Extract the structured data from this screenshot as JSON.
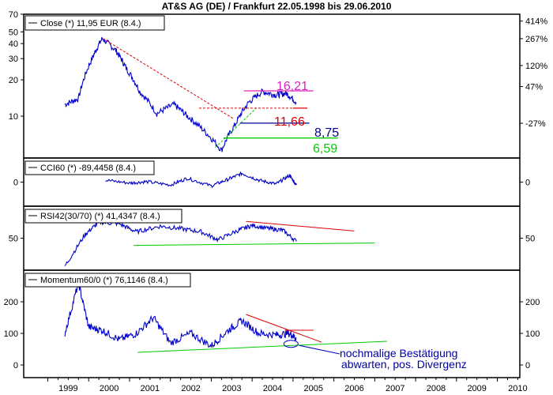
{
  "window": {
    "title": "AT&S AG (DE) / Frankfurt 22.05.1998 bis 29.06.2010"
  },
  "chart_data": [
    {
      "type": "line",
      "panel": "price",
      "scale": "log",
      "legend": "Close (*) 11,95 EUR (8.4.)",
      "series_color": "#0000cc",
      "ylim": [
        4.5,
        70
      ],
      "left_ticks": [
        10,
        20,
        30,
        40,
        50,
        70
      ],
      "right_ticks": [
        "414%",
        "267%",
        "120%",
        "47%",
        "-27%"
      ],
      "right_tick_values": [
        61.4,
        43.9,
        26.3,
        17.6,
        8.73
      ],
      "x": [
        "1999-06",
        "1999-10",
        "2000-02",
        "2000-05",
        "2000-09",
        "2000-12",
        "2001-04",
        "2001-09",
        "2002-02",
        "2002-06",
        "2002-11",
        "2003-04",
        "2003-08",
        "2003-12",
        "2004-04",
        "2004-08",
        "2004-11",
        "2005-02"
      ],
      "y": [
        12.5,
        14,
        30,
        44,
        35,
        25,
        16,
        10.5,
        12.5,
        10,
        7.5,
        5.2,
        8.5,
        13,
        16,
        15,
        15.5,
        13
      ],
      "annotations": [
        {
          "label": "16,21",
          "value": 16.21,
          "color": "#e020c0"
        },
        {
          "label": "11,66",
          "value": 11.66,
          "color": "#dd0000"
        },
        {
          "label": "8,75",
          "value": 8.75,
          "color": "#000099"
        },
        {
          "label": "6,59",
          "value": 6.59,
          "color": "#00cc00"
        }
      ]
    },
    {
      "type": "line",
      "panel": "cci",
      "legend": "CCI60 (*) -89,4458 (8.4.)",
      "series_color": "#0000cc",
      "ylim": [
        -250,
        250
      ],
      "left_ticks": [
        0
      ],
      "right_ticks": [
        0
      ],
      "x": [
        "2000-06",
        "2001-01",
        "2001-06",
        "2002-01",
        "2002-06",
        "2003-01",
        "2003-06",
        "2003-10",
        "2004-03",
        "2004-08",
        "2004-12",
        "2005-02"
      ],
      "y": [
        20,
        -10,
        5,
        -30,
        40,
        -40,
        30,
        90,
        20,
        -20,
        70,
        -30
      ]
    },
    {
      "type": "line",
      "panel": "rsi",
      "legend": "RSI42(30/70) (*) 41,4347 (8.4.)",
      "series_color": "#0000cc",
      "ylim": [
        10,
        90
      ],
      "left_ticks": [
        50
      ],
      "right_ticks": [
        50
      ],
      "x": [
        "1999-06",
        "1999-12",
        "2000-04",
        "2000-10",
        "2001-03",
        "2001-10",
        "2002-04",
        "2002-10",
        "2003-03",
        "2003-09",
        "2004-01",
        "2004-06",
        "2004-10",
        "2005-02"
      ],
      "y": [
        15,
        55,
        70,
        68,
        58,
        65,
        62,
        58,
        48,
        60,
        66,
        62,
        60,
        46
      ]
    },
    {
      "type": "line",
      "panel": "momentum",
      "legend": "Momentum60/0 (*) 76,1146 (8.4.)",
      "series_color": "#0000cc",
      "ylim": [
        -40,
        300
      ],
      "left_ticks": [
        0,
        100,
        200
      ],
      "right_ticks": [
        0,
        100,
        200
      ],
      "x": [
        "1999-06",
        "1999-10",
        "2000-01",
        "2000-05",
        "2000-10",
        "2001-03",
        "2001-08",
        "2002-01",
        "2002-07",
        "2003-01",
        "2003-06",
        "2003-10",
        "2004-03",
        "2004-08",
        "2004-12",
        "2005-02"
      ],
      "y": [
        100,
        260,
        120,
        110,
        80,
        100,
        150,
        70,
        100,
        60,
        110,
        140,
        100,
        95,
        100,
        85
      ],
      "annotation_text": [
        "nochmalige Bestätigung",
        "abwarten, pos. Divergenz"
      ]
    }
  ],
  "xaxis": {
    "labels": [
      "1999",
      "2000",
      "2001",
      "2002",
      "2003",
      "2004",
      "2005",
      "2006",
      "2007",
      "2008",
      "2009",
      "2010"
    ]
  },
  "colors": {
    "frame": "#000000",
    "grid": "#000000",
    "series": "#0000cc",
    "trend_red": "#dd0000",
    "trend_green": "#00cc00",
    "ellipse": "#0000cc"
  }
}
